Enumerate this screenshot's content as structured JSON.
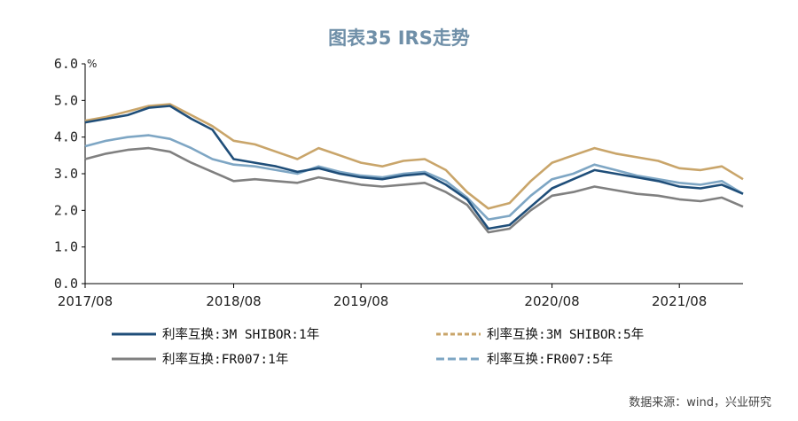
{
  "chart_data": {
    "type": "line",
    "title": "图表35  IRS走势",
    "ylabel_unit": "%",
    "ylim": [
      0,
      6
    ],
    "yticks": [
      "0.0",
      "1.0",
      "2.0",
      "3.0",
      "4.0",
      "5.0",
      "6.0"
    ],
    "x_ticks": [
      "2017/08",
      "2018/08",
      "2019/08",
      "2020/08",
      "2021/08"
    ],
    "x": [
      "2017/08",
      "2017/10",
      "2017/12",
      "2018/01",
      "2018/03",
      "2018/05",
      "2018/07",
      "2018/08",
      "2018/10",
      "2018/12",
      "2019/02",
      "2019/04",
      "2019/06",
      "2019/08",
      "2019/10",
      "2019/12",
      "2020/01",
      "2020/02",
      "2020/03",
      "2020/04",
      "2020/05",
      "2020/06",
      "2020/08",
      "2020/10",
      "2020/12",
      "2021/02",
      "2021/04",
      "2021/06",
      "2021/08",
      "2021/10",
      "2021/12",
      "2022/02"
    ],
    "series": [
      {
        "name": "利率互换:3M SHIBOR:1年",
        "color": "#1f4e79",
        "dash": "",
        "values": [
          4.4,
          4.5,
          4.6,
          4.8,
          4.85,
          4.5,
          4.2,
          3.4,
          3.3,
          3.2,
          3.05,
          3.15,
          3.0,
          2.9,
          2.85,
          2.95,
          3.0,
          2.7,
          2.3,
          1.5,
          1.6,
          2.1,
          2.6,
          2.85,
          3.1,
          3.0,
          2.9,
          2.8,
          2.65,
          2.6,
          2.7,
          2.45
        ]
      },
      {
        "name": "利率互换:3M SHIBOR:5年",
        "color": "#c9a56a",
        "dash": "5,3",
        "values": [
          4.45,
          4.55,
          4.7,
          4.85,
          4.9,
          4.6,
          4.3,
          3.9,
          3.8,
          3.6,
          3.4,
          3.7,
          3.5,
          3.3,
          3.2,
          3.35,
          3.4,
          3.1,
          2.5,
          2.05,
          2.2,
          2.8,
          3.3,
          3.5,
          3.7,
          3.55,
          3.45,
          3.35,
          3.15,
          3.1,
          3.2,
          2.85
        ]
      },
      {
        "name": "利率互换:FR007:1年",
        "color": "#808080",
        "dash": "",
        "values": [
          3.4,
          3.55,
          3.65,
          3.7,
          3.6,
          3.3,
          3.05,
          2.8,
          2.85,
          2.8,
          2.75,
          2.9,
          2.8,
          2.7,
          2.65,
          2.7,
          2.75,
          2.5,
          2.15,
          1.4,
          1.5,
          2.0,
          2.4,
          2.5,
          2.65,
          2.55,
          2.45,
          2.4,
          2.3,
          2.25,
          2.35,
          2.1
        ]
      },
      {
        "name": "利率互换:FR007:5年",
        "color": "#7ea6c4",
        "dash": "9,4",
        "values": [
          3.75,
          3.9,
          4.0,
          4.05,
          3.95,
          3.7,
          3.4,
          3.25,
          3.2,
          3.1,
          3.0,
          3.2,
          3.05,
          2.95,
          2.9,
          3.0,
          3.05,
          2.8,
          2.35,
          1.75,
          1.85,
          2.4,
          2.85,
          3.0,
          3.25,
          3.1,
          2.95,
          2.85,
          2.75,
          2.7,
          2.8,
          2.45
        ]
      }
    ]
  },
  "source": "数据来源：wind，兴业研究"
}
